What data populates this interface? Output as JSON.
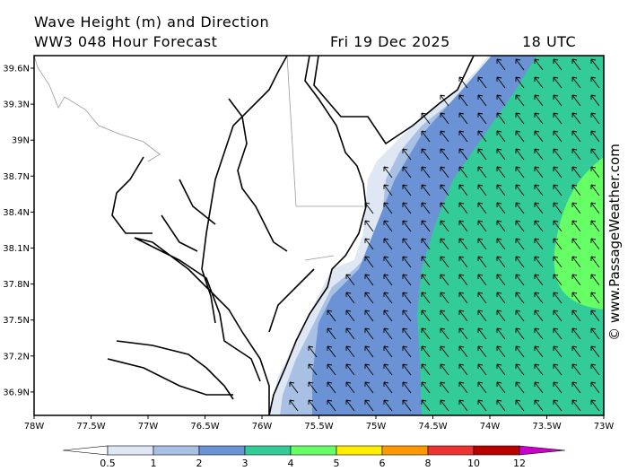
{
  "header": {
    "title": "Wave Height (m) and Direction",
    "subtitle": "WW3 048 Hour Forecast",
    "date": "Fri 19 Dec 2025",
    "time": "18 UTC"
  },
  "map": {
    "lat_labels": [
      "39.6N",
      "39.3N",
      "39N",
      "38.7N",
      "38.4N",
      "38.1N",
      "37.8N",
      "37.5N",
      "37.2N",
      "36.9N"
    ],
    "lon_labels": [
      "78W",
      "77.5W",
      "77W",
      "76.5W",
      "76W",
      "75.5W",
      "75W",
      "74.5W",
      "74W",
      "73.5W",
      "73W"
    ]
  },
  "colorbar": {
    "labels": [
      "0.5",
      "1",
      "2",
      "3",
      "4",
      "5",
      "6",
      "8",
      "10",
      "12"
    ],
    "colors": [
      "#ffffff",
      "#dfe7f4",
      "#a8c0e4",
      "#6a92d4",
      "#33cc99",
      "#66ff66",
      "#ffee00",
      "#ff9900",
      "#ee3333",
      "#bb0000",
      "#cc00cc"
    ]
  },
  "watermark": "© www.PassageWeather.com"
}
